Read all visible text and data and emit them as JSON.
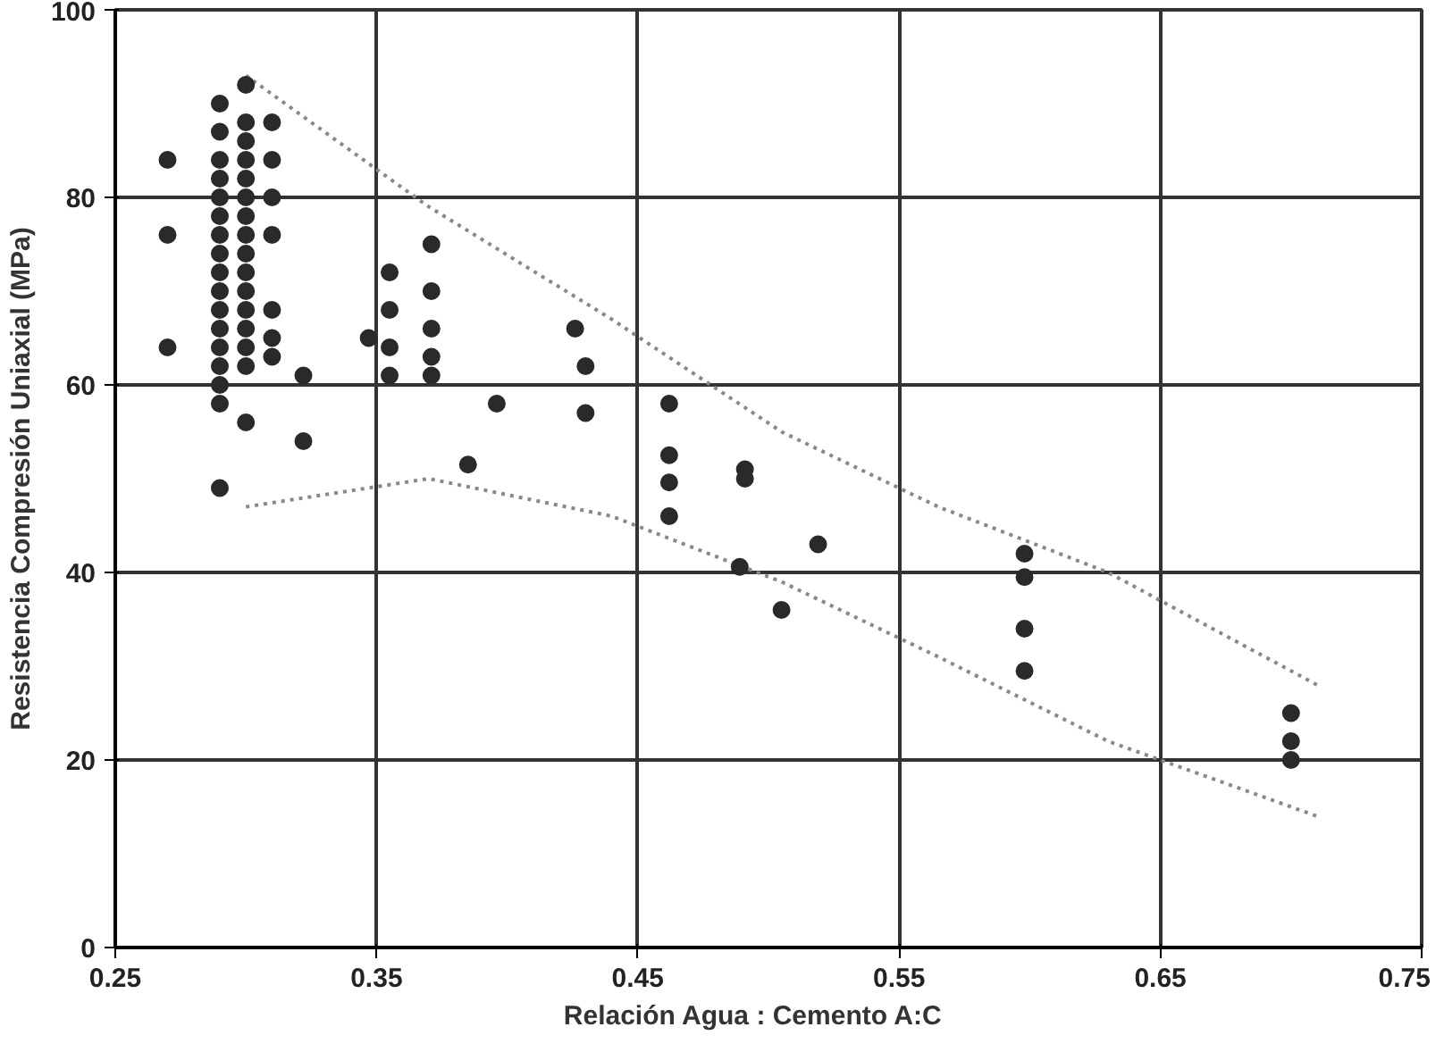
{
  "chart_data": {
    "type": "scatter",
    "xlabel": "Relación  Agua : Cemento    A:C",
    "ylabel": "Resistencia Compresión Uniaxial (MPa)",
    "xlim": [
      0.25,
      0.75
    ],
    "ylim": [
      0,
      100
    ],
    "xticks": [
      0.25,
      0.35,
      0.45,
      0.55,
      0.65,
      0.75
    ],
    "yticks": [
      0,
      20,
      40,
      60,
      80,
      100
    ],
    "grid": true,
    "series": [
      {
        "type": "line",
        "line_style": "dotted",
        "color": "#888888",
        "x": [
          0.3,
          0.37,
          0.44,
          0.505,
          0.565,
          0.63,
          0.71
        ],
        "values": [
          93,
          79,
          67,
          55,
          47,
          40,
          28
        ]
      },
      {
        "type": "line",
        "line_style": "dotted",
        "color": "#888888",
        "x": [
          0.3,
          0.37,
          0.44,
          0.505,
          0.565,
          0.63,
          0.71
        ],
        "values": [
          47,
          50,
          46,
          39,
          31,
          22,
          14
        ]
      },
      {
        "marker": "circle",
        "color": "#2a2a2a",
        "x": [
          0.27,
          0.27,
          0.27,
          0.29,
          0.29,
          0.29,
          0.29,
          0.29,
          0.29,
          0.29,
          0.29,
          0.29,
          0.29,
          0.29,
          0.29,
          0.29,
          0.29,
          0.29,
          0.29,
          0.29,
          0.3,
          0.3,
          0.3,
          0.3,
          0.3,
          0.3,
          0.3,
          0.3,
          0.3,
          0.3,
          0.3,
          0.3,
          0.3,
          0.3,
          0.3,
          0.3,
          0.31,
          0.31,
          0.31,
          0.31,
          0.31,
          0.31,
          0.31,
          0.322,
          0.322,
          0.347,
          0.355,
          0.355,
          0.355,
          0.355,
          0.371,
          0.371,
          0.371,
          0.371,
          0.371,
          0.385,
          0.396,
          0.426,
          0.43,
          0.43,
          0.462,
          0.462,
          0.462,
          0.462,
          0.489,
          0.491,
          0.491,
          0.505,
          0.519,
          0.598,
          0.598,
          0.598,
          0.598,
          0.7,
          0.7,
          0.7
        ],
        "values": [
          84,
          76,
          64,
          90,
          87,
          84,
          82,
          80,
          78,
          76,
          74,
          72,
          70,
          68,
          66,
          64,
          62,
          60,
          58,
          49,
          92,
          88,
          86,
          84,
          82,
          80,
          78,
          76,
          74,
          72,
          70,
          68,
          66,
          64,
          62,
          56,
          88,
          84,
          80,
          76,
          68,
          65,
          63,
          61,
          54,
          65,
          72,
          68,
          64,
          61,
          75,
          70,
          66,
          63,
          61,
          51.5,
          58,
          66,
          62,
          57,
          58,
          52.5,
          49.6,
          46,
          40.6,
          51,
          50,
          36,
          43,
          42,
          39.5,
          34,
          29.5,
          25,
          22,
          20
        ]
      }
    ]
  }
}
